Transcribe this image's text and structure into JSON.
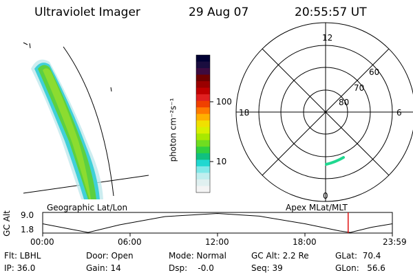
{
  "header": {
    "instrument": "Ultraviolet Imager",
    "date": "29 Aug 07",
    "time": "20:55:57 UT"
  },
  "colorbar": {
    "label": "photon cm⁻²s⁻¹",
    "ticks": [
      "100",
      "10"
    ],
    "colors": [
      "#000033",
      "#1a0d3f",
      "#3d0b40",
      "#6e0000",
      "#9a0000",
      "#c00000",
      "#e02020",
      "#f04000",
      "#ff7a00",
      "#ffb000",
      "#f0e000",
      "#d8f000",
      "#a8e800",
      "#70dd20",
      "#30d040",
      "#10c080",
      "#20d8d0",
      "#80e8e8",
      "#c0eeee",
      "#e0f0f0",
      "#f4f4f4"
    ]
  },
  "polar": {
    "labels": {
      "top": "12",
      "bottom": "0",
      "left": "18",
      "right": "6",
      "ring60": "60",
      "ring70": "70",
      "ring80": "80"
    }
  },
  "geo_panel": {
    "label_left": "Geographic Lat/Lon",
    "label_right": "Apex MLat/MLT"
  },
  "alt_plot": {
    "axis_label": "GC Alt",
    "y_ticks": [
      "9.0",
      "1.8"
    ],
    "x_ticks": [
      "00:00",
      "06:00",
      "12:00",
      "18:00",
      "23:59"
    ],
    "current_time_fraction": 0.8736
  },
  "status": {
    "flt": "Flt: LBHL",
    "ip": "IP: 36.0",
    "door": "Door: Open",
    "gain": "Gain: 14",
    "mode": "Mode: Normal",
    "dsp": "Dsp:    -0.0",
    "gcalt": "GC Alt: 2.2 Re",
    "seq": "Seq: 39",
    "glat": "GLat:  70.4",
    "glon": "GLon:   56.6"
  }
}
